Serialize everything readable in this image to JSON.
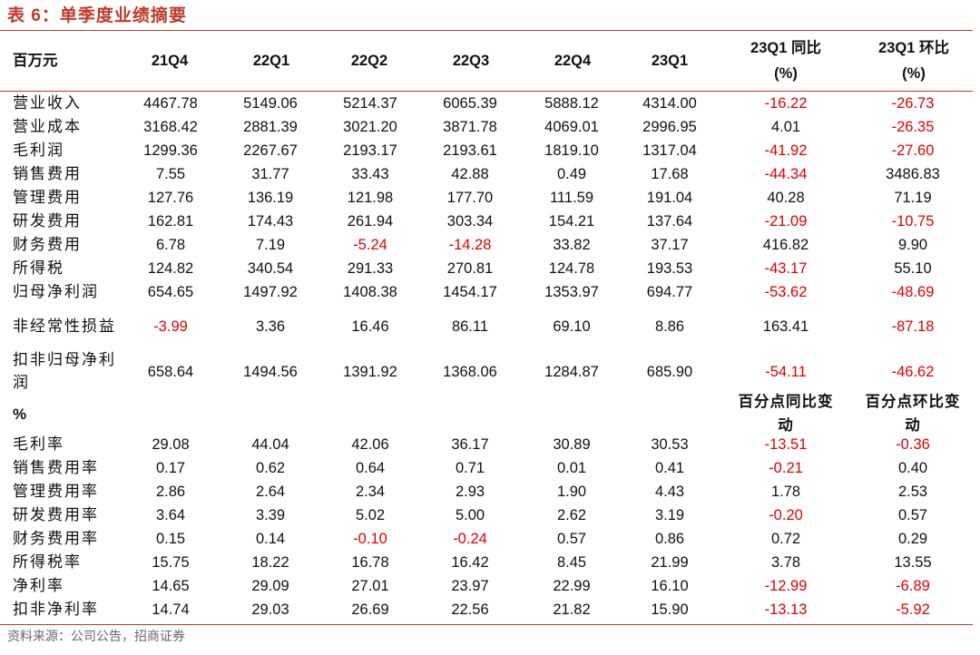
{
  "title": "表 6：单季度业绩摘要",
  "header": {
    "unit_label": "百万元",
    "columns": [
      "21Q4",
      "22Q1",
      "22Q2",
      "22Q3",
      "22Q4",
      "23Q1"
    ],
    "yoy_label": "23Q1 同比",
    "yoy_unit": "(%)",
    "qoq_label": "23Q1 环比",
    "qoq_unit": "(%)"
  },
  "section1": {
    "rows": [
      {
        "label": "营业收入",
        "values": [
          "4467.78",
          "5149.06",
          "5214.37",
          "6065.39",
          "5888.12",
          "4314.00",
          "-16.22",
          "-26.73"
        ]
      },
      {
        "label": "营业成本",
        "values": [
          "3168.42",
          "2881.39",
          "3021.20",
          "3871.78",
          "4069.01",
          "2996.95",
          "4.01",
          "-26.35"
        ]
      },
      {
        "label": "毛利润",
        "values": [
          "1299.36",
          "2267.67",
          "2193.17",
          "2193.61",
          "1819.10",
          "1317.04",
          "-41.92",
          "-27.60"
        ]
      },
      {
        "label": "销售费用",
        "values": [
          "7.55",
          "31.77",
          "33.43",
          "42.88",
          "0.49",
          "17.68",
          "-44.34",
          "3486.83"
        ]
      },
      {
        "label": "管理费用",
        "values": [
          "127.76",
          "136.19",
          "121.98",
          "177.70",
          "111.59",
          "191.04",
          "40.28",
          "71.19"
        ]
      },
      {
        "label": "研发费用",
        "values": [
          "162.81",
          "174.43",
          "261.94",
          "303.34",
          "154.21",
          "137.64",
          "-21.09",
          "-10.75"
        ]
      },
      {
        "label": "财务费用",
        "values": [
          "6.78",
          "7.19",
          "-5.24",
          "-14.28",
          "33.82",
          "37.17",
          "416.82",
          "9.90"
        ]
      },
      {
        "label": "所得税",
        "values": [
          "124.82",
          "340.54",
          "291.33",
          "270.81",
          "124.78",
          "193.53",
          "-43.17",
          "55.10"
        ]
      },
      {
        "label": "归母净利润",
        "values": [
          "654.65",
          "1497.92",
          "1408.38",
          "1454.17",
          "1353.97",
          "694.77",
          "-53.62",
          "-48.69"
        ]
      },
      {
        "label": "非经常性损益",
        "values": [
          "-3.99",
          "3.36",
          "16.46",
          "86.11",
          "69.10",
          "8.86",
          "163.41",
          "-87.18"
        ]
      },
      {
        "label": "扣非归母净利润",
        "values": [
          "658.64",
          "1494.56",
          "1391.92",
          "1368.06",
          "1284.87",
          "685.90",
          "-54.11",
          "-46.62"
        ]
      }
    ]
  },
  "section2": {
    "label": "%",
    "yoy_label": "百分点同比变动",
    "qoq_label": "百分点环比变动",
    "rows": [
      {
        "label": "毛利率",
        "values": [
          "29.08",
          "44.04",
          "42.06",
          "36.17",
          "30.89",
          "30.53",
          "-13.51",
          "-0.36"
        ]
      },
      {
        "label": "销售费用率",
        "values": [
          "0.17",
          "0.62",
          "0.64",
          "0.71",
          "0.01",
          "0.41",
          "-0.21",
          "0.40"
        ]
      },
      {
        "label": "管理费用率",
        "values": [
          "2.86",
          "2.64",
          "2.34",
          "2.93",
          "1.90",
          "4.43",
          "1.78",
          "2.53"
        ]
      },
      {
        "label": "研发费用率",
        "values": [
          "3.64",
          "3.39",
          "5.02",
          "5.00",
          "2.62",
          "3.19",
          "-0.20",
          "0.57"
        ]
      },
      {
        "label": "财务费用率",
        "values": [
          "0.15",
          "0.14",
          "-0.10",
          "-0.24",
          "0.57",
          "0.86",
          "0.72",
          "0.29"
        ]
      },
      {
        "label": "所得税率",
        "values": [
          "15.75",
          "18.22",
          "16.78",
          "16.42",
          "8.45",
          "21.99",
          "3.78",
          "13.55"
        ]
      },
      {
        "label": "净利率",
        "values": [
          "14.65",
          "29.09",
          "27.01",
          "23.97",
          "22.99",
          "16.10",
          "-12.99",
          "-6.89"
        ]
      },
      {
        "label": "扣非净利率",
        "values": [
          "14.74",
          "29.03",
          "26.69",
          "22.56",
          "21.82",
          "15.90",
          "-13.13",
          "-5.92"
        ]
      }
    ]
  },
  "source": "资料来源：公司公告，招商证券"
}
